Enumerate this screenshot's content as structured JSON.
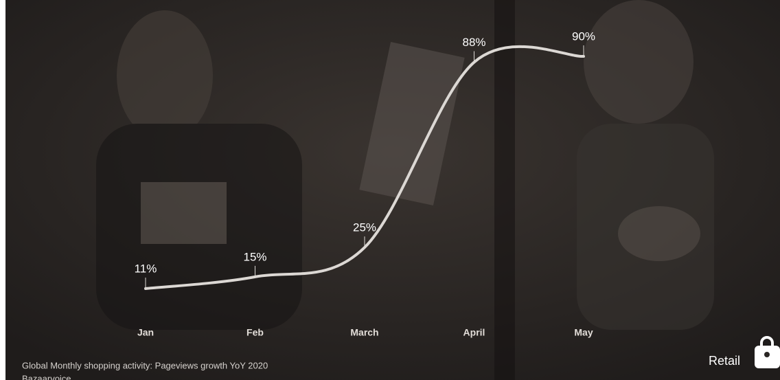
{
  "chart_data": {
    "type": "line",
    "categories": [
      "Jan",
      "Feb",
      "March",
      "April",
      "May"
    ],
    "values": [
      11,
      15,
      25,
      88,
      90
    ],
    "value_labels": [
      "11%",
      "15%",
      "25%",
      "88%",
      "90%"
    ],
    "color": "#dcd8d4",
    "caption": "Global Monthly shopping activity: Pageviews growth YoY 2020",
    "source": "Bazaarvoice",
    "tag": "Retail"
  }
}
